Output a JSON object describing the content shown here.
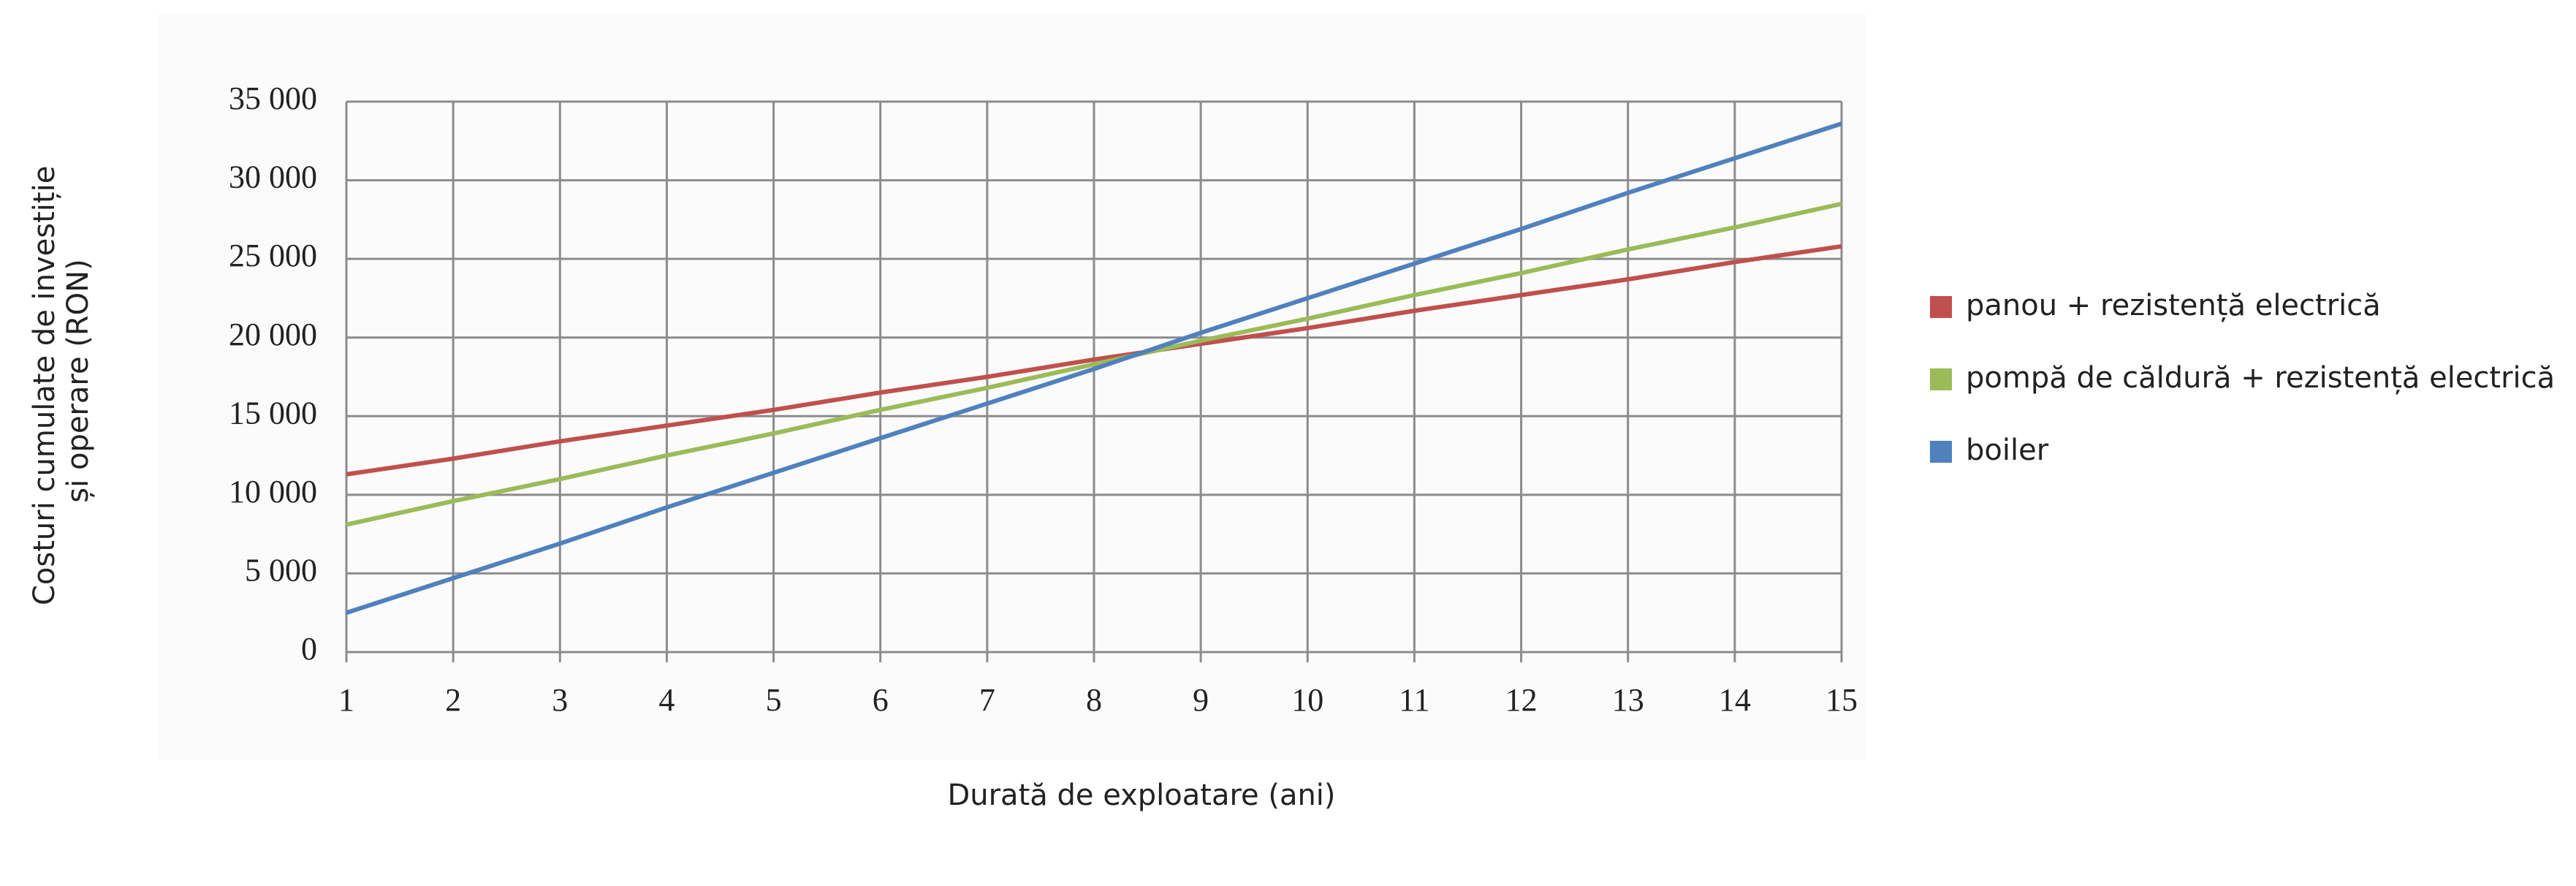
{
  "chart_data": {
    "type": "line",
    "xlabel": "Durată de exploatare (ani)",
    "ylabel": [
      "Costuri cumulate de investiție",
      "și operare (RON)"
    ],
    "x": [
      1,
      2,
      3,
      4,
      5,
      6,
      7,
      8,
      9,
      10,
      11,
      12,
      13,
      14,
      15
    ],
    "series": [
      {
        "name": "panou + rezistență electrică",
        "color": "#c0504d",
        "values": [
          11300,
          12300,
          13400,
          14400,
          15400,
          16500,
          17500,
          18600,
          19600,
          20600,
          21700,
          22700,
          23700,
          24800,
          25800
        ]
      },
      {
        "name": "pompă de căldură + rezistență electrică",
        "color": "#9bbb59",
        "values": [
          8100,
          9600,
          11000,
          12500,
          13900,
          15400,
          16800,
          18300,
          19800,
          21200,
          22700,
          24100,
          25600,
          27000,
          28500
        ]
      },
      {
        "name": "boiler",
        "color": "#4f81bd",
        "values": [
          2500,
          4700,
          6900,
          9200,
          11400,
          13600,
          15800,
          18000,
          20300,
          22500,
          24700,
          26900,
          29200,
          31400,
          33600
        ]
      }
    ],
    "xlim": [
      1,
      15
    ],
    "xticks": [
      1,
      2,
      3,
      4,
      5,
      6,
      7,
      8,
      9,
      10,
      11,
      12,
      13,
      14,
      15
    ],
    "ylim": [
      0,
      35000
    ],
    "yticks": [
      0,
      {
        "value": 5000,
        "label": "5 000"
      },
      {
        "value": 10000,
        "label": "10 000"
      },
      {
        "value": 15000,
        "label": "15 000"
      },
      {
        "value": 20000,
        "label": "20 000"
      },
      {
        "value": 25000,
        "label": "25 000"
      },
      {
        "value": 30000,
        "label": "30 000"
      },
      {
        "value": 35000,
        "label": "35 000"
      }
    ],
    "grid": true,
    "legend": "right"
  }
}
